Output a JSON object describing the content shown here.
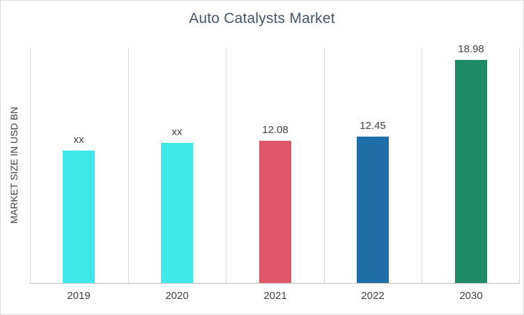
{
  "chart_data": {
    "type": "bar",
    "title": "Auto Catalysts Market",
    "ylabel": "MARKET SIZE IN USD BN",
    "xlabel": "",
    "categories": [
      "2019",
      "2020",
      "2021",
      "2022",
      "2030"
    ],
    "values": [
      11.3,
      11.9,
      12.08,
      12.45,
      18.98
    ],
    "value_labels": [
      "xx",
      "xx",
      "12.08",
      "12.45",
      "18.98"
    ],
    "bar_colors": [
      "#3FE9E9",
      "#3FE9E9",
      "#E0566B",
      "#1F6EA8",
      "#1F8A66"
    ],
    "ylim": [
      0,
      20
    ],
    "grid": "vertical category boundary lines",
    "legend": "none"
  },
  "colors": {
    "title_text": "#44546A",
    "axis_text": "#404040",
    "gridline": "#D9D9D9",
    "baseline": "#BFBFBF",
    "frame_border": "#D9D9D9",
    "background": "#FFFFFF"
  }
}
